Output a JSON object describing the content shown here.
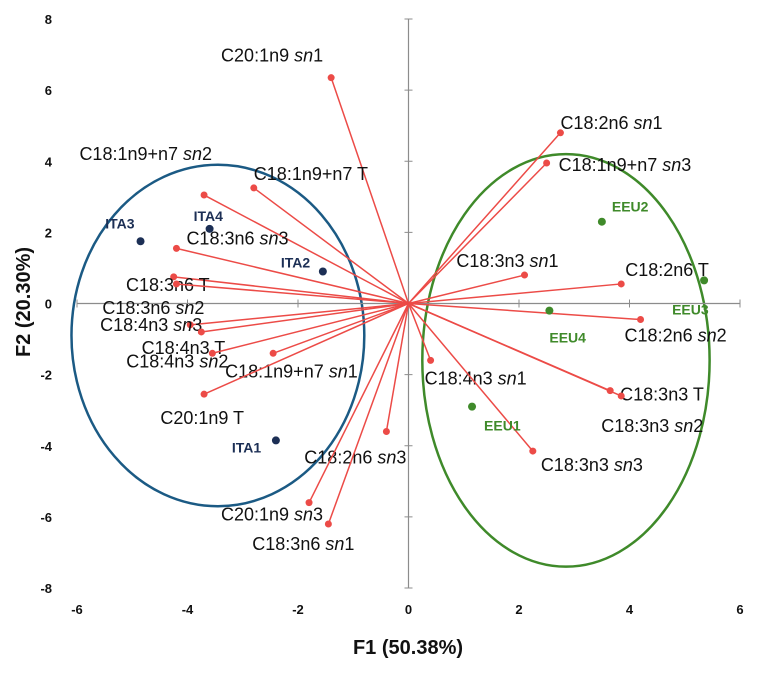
{
  "chart_data": {
    "type": "scatter",
    "subtype": "pca-biplot",
    "xlabel": "F1 (50.38%)",
    "ylabel": "F2 (20.30%)",
    "xlim": [
      -6,
      6
    ],
    "ylim": [
      -8,
      8
    ],
    "xticks": [
      -6,
      -4,
      -2,
      0,
      2,
      4,
      6
    ],
    "yticks": [
      -8,
      -6,
      -4,
      -2,
      0,
      2,
      4,
      6,
      8
    ],
    "grid": false,
    "colors": {
      "vector": "#ec4b47",
      "ita": "#1c2f55",
      "eeu": "#3f8a2a",
      "ita_ellipse": "#1b5a84",
      "eeu_ellipse": "#3f8a2a",
      "axis": "#8c8c8c"
    },
    "variables": [
      {
        "label": [
          "C20:1n9 ",
          "sn",
          "1"
        ],
        "x": -1.4,
        "y": 6.35,
        "anchor": "end",
        "dx": -8,
        "dy": -16
      },
      {
        "label": [
          "C18:1n9+n7 ",
          "sn",
          "2"
        ],
        "x": -3.7,
        "y": 3.05,
        "anchor": "end",
        "dx": 8,
        "dy": -35
      },
      {
        "label": [
          "C18:1n9+n7 T"
        ],
        "x": -2.8,
        "y": 3.25,
        "anchor": "start",
        "dx": 0,
        "dy": -8
      },
      {
        "label": [
          "C18:3n6 ",
          "sn",
          "3"
        ],
        "x": -4.2,
        "y": 1.55,
        "anchor": "start",
        "dx": 10,
        "dy": -4
      },
      {
        "label": [
          "C18:3n6 T"
        ],
        "x": -4.25,
        "y": 0.75,
        "anchor": "end",
        "dx": 36,
        "dy": 14
      },
      {
        "label": [
          "C18:3n6 ",
          "sn",
          "2"
        ],
        "x": -4.2,
        "y": 0.55,
        "anchor": "end",
        "dx": 28,
        "dy": 30
      },
      {
        "label": [
          "C18:4n3 ",
          "sn",
          "3"
        ],
        "x": -3.95,
        "y": -0.6,
        "anchor": "end",
        "dx": 12,
        "dy": 6
      },
      {
        "label": [
          "C18:4n3 T"
        ],
        "x": -3.75,
        "y": -0.8,
        "anchor": "end",
        "dx": 24,
        "dy": 22
      },
      {
        "label": [
          "C18:4n3 ",
          "sn",
          "2"
        ],
        "x": -3.55,
        "y": -1.4,
        "anchor": "end",
        "dx": 16,
        "dy": 14
      },
      {
        "label": [
          "C18:1n9+n7 ",
          "sn",
          "1"
        ],
        "x": -2.45,
        "y": -1.4,
        "anchor": "start",
        "dx": -48,
        "dy": 24
      },
      {
        "label": [
          "C20:1n9 T"
        ],
        "x": -3.7,
        "y": -2.55,
        "anchor": "end",
        "dx": 40,
        "dy": 30
      },
      {
        "label": [
          "C18:2n6 ",
          "sn",
          "3"
        ],
        "x": -0.4,
        "y": -3.6,
        "anchor": "end",
        "dx": 20,
        "dy": 32
      },
      {
        "label": [
          "C20:1n9 ",
          "sn",
          "3"
        ],
        "x": -1.8,
        "y": -5.6,
        "anchor": "end",
        "dx": 14,
        "dy": 18
      },
      {
        "label": [
          "C18:3n6 ",
          "sn",
          "1"
        ],
        "x": -1.45,
        "y": -6.2,
        "anchor": "end",
        "dx": 26,
        "dy": 26
      },
      {
        "label": [
          "C18:4n3 ",
          "sn",
          "1"
        ],
        "x": 0.4,
        "y": -1.6,
        "anchor": "start",
        "dx": -6,
        "dy": 24
      },
      {
        "label": [
          "C18:2n6 ",
          "sn",
          "1"
        ],
        "x": 2.75,
        "y": 4.8,
        "anchor": "start",
        "dx": 0,
        "dy": -4
      },
      {
        "label": [
          "C18:1n9+n7 ",
          "sn",
          "3"
        ],
        "x": 2.5,
        "y": 3.95,
        "anchor": "start",
        "dx": 12,
        "dy": 8
      },
      {
        "label": [
          "C18:3n3 ",
          "sn",
          "1"
        ],
        "x": 2.1,
        "y": 0.8,
        "anchor": "end",
        "dx": 34,
        "dy": -8
      },
      {
        "label": [
          "C18:2n6 T"
        ],
        "x": 3.85,
        "y": 0.55,
        "anchor": "start",
        "dx": 4,
        "dy": -8
      },
      {
        "label": [
          "C18:2n6 ",
          "sn",
          "2"
        ],
        "x": 4.2,
        "y": -0.45,
        "anchor": "start",
        "dx": -16,
        "dy": 22
      },
      {
        "label": [
          "C18:3n3 T"
        ],
        "x": 3.65,
        "y": -2.45,
        "anchor": "start",
        "dx": 10,
        "dy": 10
      },
      {
        "label": [
          "C18:3n3 ",
          "sn",
          "2"
        ],
        "x": 3.85,
        "y": -2.6,
        "anchor": "start",
        "dx": -20,
        "dy": 36
      },
      {
        "label": [
          "C18:3n3 ",
          "sn",
          "3"
        ],
        "x": 2.25,
        "y": -4.15,
        "anchor": "start",
        "dx": 8,
        "dy": 20
      }
    ],
    "observations": [
      {
        "label": "ITA3",
        "group": "ITA",
        "x": -4.85,
        "y": 1.75,
        "dx": -6,
        "dy": -13,
        "anchor": "end"
      },
      {
        "label": "ITA4",
        "group": "ITA",
        "x": -3.6,
        "y": 2.1,
        "dx": -16,
        "dy": -8,
        "anchor": "start"
      },
      {
        "label": "ITA2",
        "group": "ITA",
        "x": -1.55,
        "y": 0.9,
        "dx": -42,
        "dy": -4,
        "anchor": "start"
      },
      {
        "label": "ITA1",
        "group": "ITA",
        "x": -2.4,
        "y": -3.85,
        "dx": -44,
        "dy": 12,
        "anchor": "start"
      },
      {
        "label": "EEU2",
        "group": "EEU",
        "x": 3.5,
        "y": 2.3,
        "dx": 10,
        "dy": -10,
        "anchor": "start"
      },
      {
        "label": "EEU3",
        "group": "EEU",
        "x": 5.35,
        "y": 0.65,
        "dx": -32,
        "dy": 34,
        "anchor": "start"
      },
      {
        "label": "EEU4",
        "group": "EEU",
        "x": 2.55,
        "y": -0.2,
        "dx": 0,
        "dy": 32,
        "anchor": "start"
      },
      {
        "label": "EEU1",
        "group": "EEU",
        "x": 1.15,
        "y": -2.9,
        "dx": 12,
        "dy": 24,
        "anchor": "start"
      }
    ],
    "ellipses": [
      {
        "name": "ITA",
        "cx": -3.45,
        "cy": -0.9,
        "rx": 2.65,
        "ry": 4.8
      },
      {
        "name": "EEU",
        "cx": 2.85,
        "cy": -1.6,
        "rx": 2.6,
        "ry": 5.8
      }
    ]
  }
}
